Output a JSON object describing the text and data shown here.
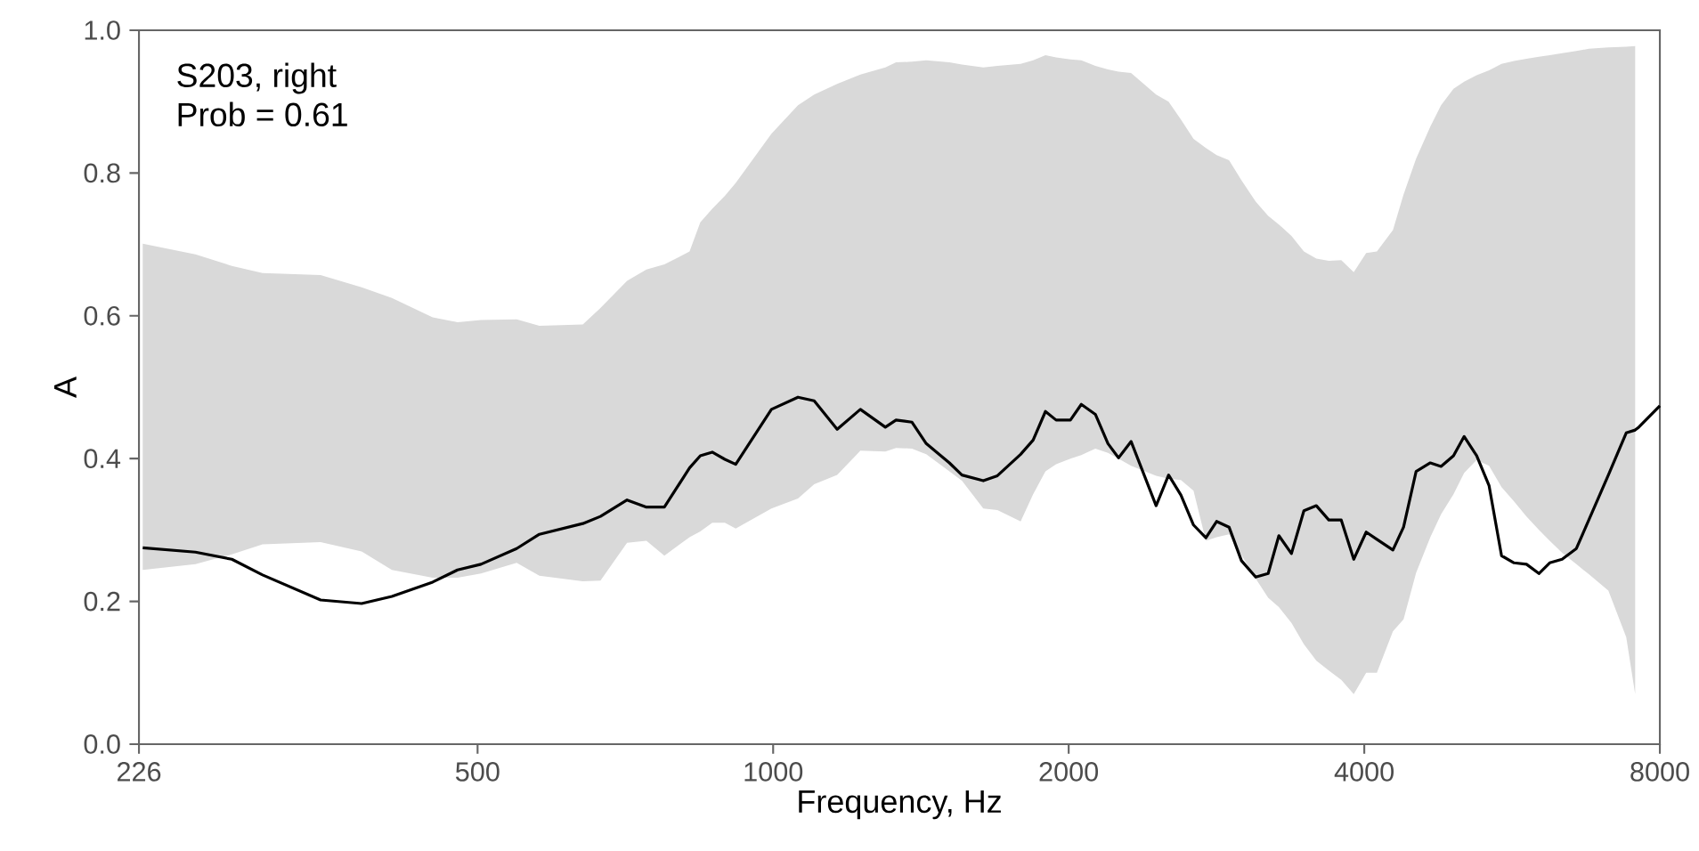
{
  "chart_data": {
    "type": "line",
    "xlabel": "Frequency, Hz",
    "ylabel": "A",
    "log": "x",
    "xlim": [
      226,
      8000
    ],
    "xticks": [
      226,
      500,
      1000,
      2000,
      4000,
      8000
    ],
    "ylim": [
      0,
      1
    ],
    "yticks": [
      {
        "value": 0,
        "label": "0.0"
      },
      0.2,
      0.4,
      0.6,
      0.8,
      {
        "value": 1,
        "label": "1.0"
      }
    ],
    "annotations": [
      "S203, right",
      "Prob = 0.61"
    ],
    "series": [
      {
        "color": "#000000",
        "x": [
          228,
          258,
          281,
          302,
          346,
          381,
          409,
          450,
          477,
          504,
          548,
          578,
          640,
          667,
          710,
          743,
          775,
          822,
          843,
          867,
          893,
          916,
          996,
          1060,
          1101,
          1162,
          1227,
          1301,
          1334,
          1385,
          1432,
          1512,
          1557,
          1637,
          1692,
          1787,
          1840,
          1894,
          1942,
          2008,
          2060,
          2129,
          2193,
          2248,
          2315,
          2455,
          2528,
          2602,
          2680,
          2759,
          2829,
          2913,
          2999,
          3101,
          3193,
          3274,
          3372,
          3472,
          3575,
          3681,
          3790,
          3903,
          4018,
          4120,
          4278,
          4386,
          4517,
          4670,
          4789,
          4931,
          5056,
          5206,
          5360,
          5519,
          5683,
          5852,
          6025,
          6179,
          6362,
          6578,
          6773,
          7091,
          7394,
          7551,
          7614,
          8000
        ],
        "values": [
          0.275,
          0.269,
          0.259,
          0.237,
          0.202,
          0.197,
          0.207,
          0.227,
          0.244,
          0.252,
          0.274,
          0.294,
          0.309,
          0.319,
          0.342,
          0.332,
          0.332,
          0.387,
          0.404,
          0.409,
          0.399,
          0.392,
          0.469,
          0.486,
          0.481,
          0.441,
          0.469,
          0.444,
          0.454,
          0.451,
          0.421,
          0.394,
          0.377,
          0.369,
          0.376,
          0.406,
          0.426,
          0.466,
          0.454,
          0.454,
          0.476,
          0.462,
          0.421,
          0.401,
          0.424,
          0.334,
          0.377,
          0.349,
          0.307,
          0.289,
          0.312,
          0.304,
          0.257,
          0.234,
          0.239,
          0.292,
          0.267,
          0.327,
          0.334,
          0.314,
          0.314,
          0.259,
          0.297,
          0.287,
          0.272,
          0.304,
          0.382,
          0.394,
          0.389,
          0.404,
          0.431,
          0.404,
          0.362,
          0.264,
          0.254,
          0.252,
          0.239,
          0.254,
          0.259,
          0.274,
          0.314,
          0.377,
          0.436,
          0.44,
          0.444,
          0.474
        ],
        "upper": [
          0.701,
          0.686,
          0.67,
          0.66,
          0.657,
          0.64,
          0.625,
          0.598,
          0.591,
          0.594,
          0.595,
          0.586,
          0.588,
          0.611,
          0.649,
          0.665,
          0.672,
          0.69,
          0.731,
          0.75,
          0.768,
          0.786,
          0.855,
          0.895,
          0.91,
          0.925,
          0.938,
          0.948,
          0.955,
          0.956,
          0.958,
          0.955,
          0.952,
          0.948,
          0.95,
          0.953,
          0.958,
          0.965,
          0.962,
          0.959,
          0.958,
          0.95,
          0.945,
          0.942,
          0.94,
          0.91,
          0.9,
          0.875,
          0.848,
          0.835,
          0.825,
          0.818,
          0.79,
          0.76,
          0.74,
          0.728,
          0.712,
          0.69,
          0.68,
          0.677,
          0.678,
          0.661,
          0.688,
          0.69,
          0.72,
          0.77,
          0.82,
          0.865,
          0.895,
          0.918,
          0.928,
          0.937,
          0.944,
          0.953,
          0.957,
          0.96,
          0.963,
          0.965,
          0.968,
          0.971,
          0.974,
          0.976,
          0.977,
          0.978,
          null,
          null
        ],
        "lower": [
          0.244,
          0.252,
          0.266,
          0.28,
          0.283,
          0.27,
          0.244,
          0.233,
          0.233,
          0.239,
          0.254,
          0.236,
          0.228,
          0.229,
          0.282,
          0.285,
          0.264,
          0.29,
          0.298,
          0.31,
          0.31,
          0.302,
          0.33,
          0.344,
          0.364,
          0.377,
          0.411,
          0.41,
          0.415,
          0.414,
          0.406,
          0.382,
          0.369,
          0.33,
          0.328,
          0.312,
          0.35,
          0.382,
          0.392,
          0.4,
          0.405,
          0.414,
          0.408,
          0.4,
          0.39,
          0.376,
          0.372,
          0.37,
          0.355,
          0.285,
          0.29,
          0.294,
          0.265,
          0.232,
          0.205,
          0.192,
          0.17,
          0.14,
          0.117,
          0.103,
          0.09,
          0.07,
          0.1,
          0.1,
          0.158,
          0.175,
          0.24,
          0.29,
          0.322,
          0.35,
          0.38,
          0.398,
          0.39,
          0.36,
          0.34,
          0.319,
          0.3,
          0.285,
          0.268,
          0.252,
          0.238,
          0.215,
          0.15,
          0.07,
          null,
          null
        ]
      }
    ]
  }
}
